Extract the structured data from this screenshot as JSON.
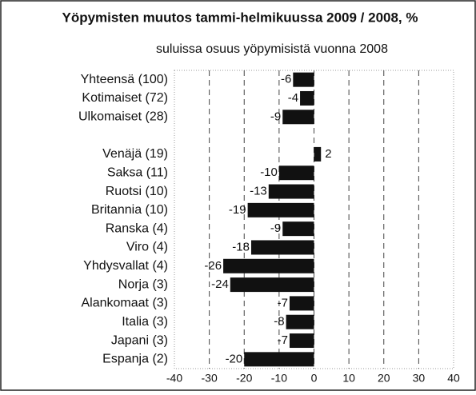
{
  "chart_data": {
    "type": "bar",
    "orientation": "horizontal",
    "title": "Yöpymisten muutos tammi-helmikuussa 2009 / 2008, %",
    "subtitle": "suluissa osuus  yöpymisistä vuonna 2008",
    "categories": [
      "Yhteensä (100)",
      "Kotimaiset (72)",
      "Ulkomaiset (28)",
      null,
      "Venäjä (19)",
      "Saksa (11)",
      "Ruotsi (10)",
      "Britannia (10)",
      "Ranska (4)",
      "Viro (4)",
      "Yhdysvallat (4)",
      "Norja (3)",
      "Alankomaat (3)",
      "Italia (3)",
      "Japani (3)",
      "Espanja (2)"
    ],
    "values": [
      -6,
      -4,
      -9,
      null,
      2,
      -10,
      -13,
      -19,
      -9,
      -18,
      -26,
      -24,
      -7,
      -8,
      -7,
      -20
    ],
    "color": "#111111",
    "xlim": [
      -40,
      40
    ],
    "xticks": [
      -40,
      -30,
      -20,
      -10,
      0,
      10,
      20,
      30,
      40
    ],
    "grid": true
  }
}
